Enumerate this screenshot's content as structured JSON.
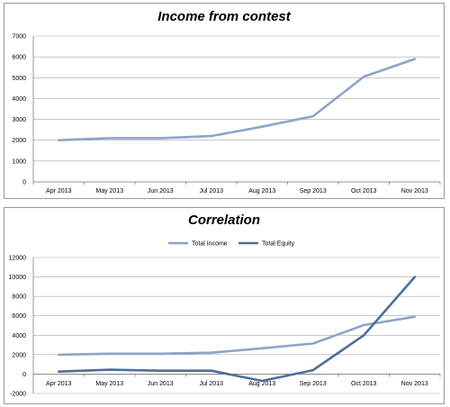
{
  "chart_data": [
    {
      "type": "line",
      "title": "Income from contest",
      "categories": [
        "Apr 2013",
        "May 2013",
        "Jun 2013",
        "Jul 2013",
        "Aug 2013",
        "Sep 2013",
        "Oct 2013",
        "Nov 2013"
      ],
      "series": [
        {
          "values": [
            2000,
            2100,
            2100,
            2200,
            2650,
            3150,
            5050,
            5900
          ],
          "color": "#8ea4c8"
        }
      ],
      "ylim": [
        0,
        7000
      ],
      "yticks": [
        0,
        1000,
        2000,
        3000,
        4000,
        5000,
        6000,
        7000
      ],
      "grid": true,
      "legend": "none"
    },
    {
      "type": "line",
      "title": "Correlation",
      "categories": [
        "Apr 2013",
        "May 2013",
        "Jun 2013",
        "Jul 2013",
        "Aug 2013",
        "Sep 2013",
        "Oct 2013",
        "Nov 2013"
      ],
      "series": [
        {
          "name": "Total Income",
          "values": [
            2000,
            2100,
            2100,
            2200,
            2650,
            3150,
            5050,
            5900
          ],
          "color": "#8ea4c8"
        },
        {
          "name": "Total Equity",
          "values": [
            250,
            450,
            350,
            350,
            -700,
            400,
            4000,
            10000
          ],
          "color": "#4a6f9c"
        }
      ],
      "ylim": [
        -2000,
        12000
      ],
      "yticks": [
        -2000,
        0,
        2000,
        4000,
        6000,
        8000,
        10000,
        12000
      ],
      "grid": true,
      "legend": "top"
    }
  ]
}
